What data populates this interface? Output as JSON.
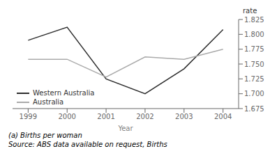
{
  "chart_data": {
    "type": "line",
    "xlabel": "Year",
    "ylabel": "rate",
    "x": [
      1999,
      2000,
      2001,
      2002,
      2003,
      2004
    ],
    "series": [
      {
        "name": "Western Australia",
        "color": "#2d2d2d",
        "values": [
          1.79,
          1.812,
          1.725,
          1.7,
          1.742,
          1.808
        ]
      },
      {
        "name": "Australia",
        "color": "#aaaaaa",
        "values": [
          1.758,
          1.758,
          1.728,
          1.762,
          1.758,
          1.775
        ]
      }
    ],
    "xlim": [
      1998.6,
      2004.4
    ],
    "xticks": [
      1999,
      2000,
      2001,
      2002,
      2003,
      2004
    ],
    "ylim": [
      1.675,
      1.825
    ],
    "yticks": [
      1.675,
      {
        "value": 1.7,
        "label": "1.700"
      },
      1.725,
      {
        "value": 1.75,
        "label": "1.750"
      },
      1.775,
      {
        "value": 1.8,
        "label": "1.800"
      },
      1.825
    ],
    "grid": false,
    "legend": "lower left",
    "annotations": [
      "(a) Births per woman",
      "Source: ABS data available on request, Births"
    ]
  }
}
